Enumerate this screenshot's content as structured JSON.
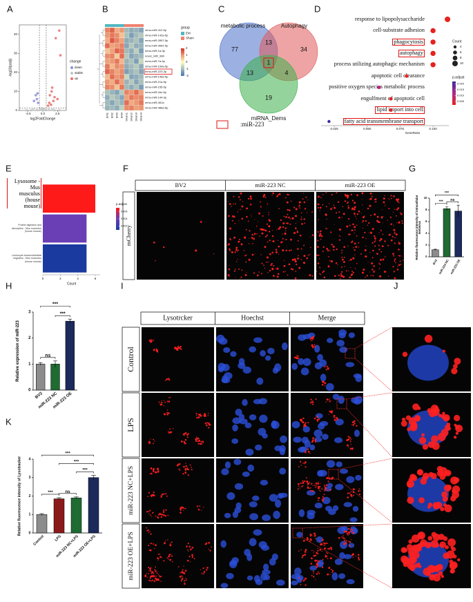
{
  "panel_labels": [
    "A",
    "B",
    "C",
    "D",
    "E",
    "F",
    "G",
    "H",
    "I",
    "J",
    "K"
  ],
  "chart_data": [
    {
      "type": "scatter",
      "xlabel": "log2FoldChange",
      "ylabel": "-log10(padj)",
      "xlim": [
        -4,
        4
      ],
      "ylim": [
        0,
        45
      ],
      "xticks": [
        -2.5,
        {
          "value": 0,
          "label": "0.0"
        },
        2.5
      ],
      "yticks": [
        0,
        10,
        20,
        30,
        40
      ],
      "legend_title": "change",
      "legend": "right",
      "vlines": [
        -0.58,
        0.58
      ],
      "hline": 1.3,
      "series": [
        {
          "name": "down",
          "color": "#8b8fd8",
          "x": [
            -1.2,
            -1.0,
            -0.8,
            -1.5,
            -0.9
          ],
          "values": [
            8,
            6,
            4,
            5,
            9
          ]
        },
        {
          "name": "stable",
          "color": "#c4c4c4",
          "x": [
            0,
            -0.5,
            0.5,
            -2,
            2,
            -1,
            1,
            0.2,
            -0.2,
            -2.8,
            2.8,
            -1.6,
            1.6
          ],
          "values": [
            0.5,
            0.3,
            0.2,
            0.1,
            0.1,
            0.2,
            0.3,
            1,
            1.2,
            0.1,
            0.1,
            0.4,
            0.4
          ]
        },
        {
          "name": "up",
          "color": "#e8706a",
          "x": [
            2.8,
            2.2,
            3.0,
            1.5,
            1.2,
            2.0,
            1.8,
            1.1,
            2.5,
            1.4,
            0.9,
            1.6
          ],
          "values": [
            42,
            38,
            29,
            10,
            8,
            7,
            5,
            4,
            6,
            3,
            2.5,
            12
          ]
        }
      ]
    },
    {
      "type": "heatmap",
      "rows": [
        "mmu-miR-412-5p",
        "mmu-miR-142a-5p",
        "mmu-miR-3957-5p",
        "mmu-miR-3081-5p",
        "mmu-miR-1a-3p",
        "novel_miR_980",
        "mmu-miR-7a-5p",
        "mmu-miR-199a-5p",
        "mmu-miR-223-3p",
        "mmu-miR-146a-5p",
        "mmu-miR-21a-5p",
        "mmu-miR-155-5p",
        "mmu-miR-34c-5p",
        "mmu-miR-144-3p",
        "mmu-miR-451a",
        "mmu-miR-486a-5p"
      ],
      "columns": [
        "EM1",
        "EM2",
        "EM3",
        "EM4",
        "Sham1",
        "Sham2",
        "Sham3",
        "Sham4"
      ],
      "values": [
        [
          1.2,
          1.5,
          0.8,
          1.0,
          -1.0,
          -1.2,
          -1.1,
          -1.3
        ],
        [
          1.0,
          1.3,
          1.1,
          0.6,
          -0.9,
          -1.4,
          -1.0,
          -0.8
        ],
        [
          0.8,
          1.6,
          1.2,
          0.9,
          -1.2,
          -1.1,
          -0.9,
          -1.3
        ],
        [
          1.4,
          0.9,
          1.0,
          1.2,
          -1.3,
          -0.8,
          -1.2,
          -1.1
        ],
        [
          0.6,
          0.9,
          1.5,
          1.3,
          -1.0,
          -1.2,
          -0.7,
          -1.4
        ],
        [
          1.1,
          1.2,
          0.5,
          1.4,
          -0.8,
          -1.3,
          -1.1,
          -1.0
        ],
        [
          0.9,
          1.0,
          1.3,
          0.7,
          -1.1,
          -0.9,
          -1.4,
          -0.6
        ],
        [
          1.3,
          0.7,
          1.1,
          1.0,
          -1.2,
          -1.0,
          -0.8,
          -1.2
        ],
        [
          1.5,
          1.2,
          0.9,
          1.1,
          -1.4,
          -1.1,
          -0.9,
          -1.3
        ],
        [
          0.7,
          1.4,
          1.0,
          1.2,
          -0.6,
          -1.3,
          -1.2,
          -1.0
        ],
        [
          1.0,
          0.8,
          1.4,
          0.9,
          -1.1,
          -0.8,
          -1.3,
          -0.9
        ],
        [
          1.2,
          1.1,
          0.6,
          1.3,
          -1.0,
          -1.2,
          -0.9,
          -1.4
        ],
        [
          -0.9,
          -1.1,
          -1.3,
          -0.8,
          1.2,
          1.0,
          1.4,
          0.9
        ],
        [
          -1.2,
          -0.8,
          -1.0,
          -1.3,
          0.9,
          1.3,
          1.1,
          1.2
        ],
        [
          -1.0,
          -1.3,
          -0.9,
          -1.1,
          1.4,
          0.8,
          1.0,
          1.3
        ],
        [
          -1.1,
          -1.0,
          -1.2,
          -0.7,
          1.1,
          1.2,
          0.9,
          1.0
        ]
      ],
      "color_lim": [
        -2,
        2
      ],
      "color_ticks": [
        2,
        1,
        0,
        -1,
        -2
      ],
      "colors": [
        "#4575b4",
        "#ffffbf",
        "#d73027"
      ],
      "legend_title": "group",
      "groups": [
        {
          "name": "EM",
          "color": "#4fb7c0",
          "columns": 4
        },
        {
          "name": "Sham",
          "color": "#f08070",
          "columns": 4
        }
      ],
      "highlight": 8
    },
    {
      "type": "venn",
      "sets": [
        "metabolic process",
        "Autophagy",
        "miRNA_Dems"
      ],
      "colors": [
        "#4a6fc8",
        "#e05a5a",
        "#3cb04a"
      ],
      "regions": [
        77,
        34,
        19,
        13,
        13,
        4,
        1
      ],
      "note": ":miR-223"
    },
    {
      "type": "dot",
      "terms": [
        "response to lipopolysaccharide",
        "cell-substrate adhesion",
        "phagocytosis",
        "autophagy",
        "process utilizing autophagic mechanism",
        "apoptotic cell clearance",
        "positive oxygen species metabolic process",
        "engulfment of apoptotic cell",
        "lipid import into cell",
        "fatty acid transmembrane transport"
      ],
      "values": [
        0.111,
        0.1,
        0.1,
        0.1,
        0.1,
        0.08,
        0.059,
        0.068,
        0.068,
        0.021
      ],
      "sizes": [
        10,
        9,
        9,
        9,
        9,
        5,
        5,
        5,
        5,
        4
      ],
      "colors": [
        "#e8221c",
        "#e5221f",
        "#e5221f",
        "#e5221f",
        "#e5221f",
        "#e52424",
        "#c0207a",
        "#e2262a",
        "#e2262a",
        "#3a2a9a"
      ],
      "highlight": [
        2,
        3,
        8,
        9
      ],
      "xlabel": "GeneRatio",
      "xlim": [
        0.015,
        0.112
      ],
      "xticks": [
        0.025,
        {
          "value": 0.05,
          "label": "0.050"
        },
        0.075,
        {
          "value": 0.1,
          "label": "0.100"
        }
      ],
      "size_legend_title": "Count",
      "size_legend": [
        4,
        6,
        8,
        10
      ],
      "color_legend_title": "p.adjust",
      "color_lim": [
        0.002,
        0.022
      ],
      "color_ticks": [
        {
          "value": 0.02,
          "label": "0.020"
        },
        0.015,
        {
          "value": 0.01,
          "label": "0.010"
        },
        0.005
      ]
    },
    {
      "type": "barh",
      "categories": [
        "Lysosome - Mus musculus (house mouse)",
        "Protein digestion and absorption - Mus musculus (house mouse)",
        "Leukocyte transendothelial migration - Mus musculus (house mouse)"
      ],
      "values": [
        6,
        5,
        5
      ],
      "colors": [
        "#ff1a1a",
        "#6a3fb5",
        "#1a3aa0"
      ],
      "highlight": [
        0
      ],
      "xlabel": "Count",
      "xlim": [
        0,
        6.55
      ],
      "xticks": [
        0,
        2,
        4,
        6
      ],
      "color_legend_title": "p.adjust",
      "color_lim": [
        0.001,
        0.007
      ],
      "color_ticks": [
        0.002,
        0.004,
        0.006
      ]
    },
    {
      "type": "bar",
      "categories": [
        "BV2",
        "miR-223 NC",
        "miR-223 OE"
      ],
      "values": [
        1.2,
        8.2,
        7.8
      ],
      "errors": [
        0.1,
        0.3,
        1.0
      ],
      "colors": [
        "#8c8c8c",
        "#1f6b32",
        "#1c2a5c"
      ],
      "ylim": [
        0,
        10
      ],
      "yticks": [
        0,
        2,
        4,
        6,
        8,
        10
      ],
      "ylabel": "Relative fluorescence intensity of intracellular lentivirus",
      "significance": [
        {
          "pair": [
            0,
            1
          ],
          "label": "***"
        },
        {
          "pair": [
            1,
            2
          ],
          "label": "ns"
        },
        {
          "pair": [
            0,
            2
          ],
          "label": "***"
        }
      ]
    },
    {
      "type": "bar",
      "categories": [
        "BV2",
        "miR-223 NC",
        "miR-223 OE"
      ],
      "values": [
        1.0,
        1.0,
        2.65
      ],
      "errors": [
        0.05,
        0.12,
        0.08
      ],
      "colors": [
        "#8c8c8c",
        "#1f6b32",
        "#1c2a5c"
      ],
      "ylim": [
        0,
        3
      ],
      "yticks": [
        0,
        1,
        2,
        3
      ],
      "ylabel": "Relative expression of miR-223",
      "significance": [
        {
          "pair": [
            0,
            1
          ],
          "label": "ns"
        },
        {
          "pair": [
            1,
            2
          ],
          "label": "***"
        },
        {
          "pair": [
            0,
            2
          ],
          "label": "***"
        }
      ]
    },
    {
      "type": "bar",
      "categories": [
        "Control",
        "LPS",
        "miR-223 NC+LPS",
        "miR-223 OE+LPS"
      ],
      "values": [
        1.0,
        1.85,
        1.9,
        3.0
      ],
      "errors": [
        0.05,
        0.06,
        0.05,
        0.12
      ],
      "colors": [
        "#8c8c8c",
        "#8b1a1a",
        "#1f6b32",
        "#1c2a5c"
      ],
      "ylim": [
        0,
        4
      ],
      "yticks": [
        0,
        1,
        2,
        3,
        4
      ],
      "ylabel": "Relative fluorescence intensity of Lysotracker",
      "significance": [
        {
          "pair": [
            0,
            1
          ],
          "label": "***"
        },
        {
          "pair": [
            1,
            2
          ],
          "label": "ns"
        },
        {
          "pair": [
            2,
            3
          ],
          "label": "***"
        },
        {
          "pair": [
            1,
            3
          ],
          "label": "***"
        },
        {
          "pair": [
            0,
            3
          ],
          "label": "***"
        }
      ]
    }
  ],
  "microscopy_F": {
    "columns": [
      "BV2",
      "miR-223 NC",
      "miR-223 OE"
    ],
    "rows": [
      "mCherry"
    ]
  },
  "microscopy_I": {
    "columns": [
      "Lysotrcker",
      "Hoechst",
      "Merge"
    ],
    "rows": [
      "Control",
      "LPS",
      "miR-223 NC+LPS",
      "miR-223 OE+LPS"
    ]
  }
}
